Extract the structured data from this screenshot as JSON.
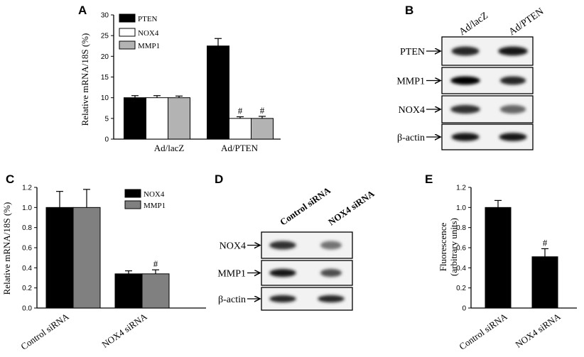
{
  "panels": {
    "A": {
      "letter": "A",
      "legend": [
        "PTEN",
        "NOX4",
        "MMP1"
      ],
      "ylabel": "Relative mRNA/18S (%)",
      "categories": [
        "Ad/lacZ",
        "Ad/PTEN"
      ],
      "annotation": "#"
    },
    "B": {
      "letter": "B",
      "lanes": [
        "Ad/lacZ",
        "Ad/PTEN"
      ],
      "rows": [
        "PTEN",
        "MMP1",
        "NOX4",
        "β-actin"
      ]
    },
    "C": {
      "letter": "C",
      "legend": [
        "NOX4",
        "MMP1"
      ],
      "ylabel": "Relative mRNA/18S (%)",
      "categories": [
        "Control siRNA",
        "NOX4 siRNA"
      ],
      "annotation": "#"
    },
    "D": {
      "letter": "D",
      "lanes": [
        "Control siRNA",
        "NOX4 siRNA"
      ],
      "rows": [
        "NOX4",
        "MMP1",
        "β-actin"
      ]
    },
    "E": {
      "letter": "E",
      "ylabel_line1": "Fluorescence",
      "ylabel_line2": "(arbitrary units)",
      "categories": [
        "Control siRNA",
        "NOX4 siRNA"
      ],
      "annotation": "#"
    }
  },
  "chart_data": [
    {
      "panel": "A",
      "type": "bar",
      "categories": [
        "Ad/lacZ",
        "Ad/PTEN"
      ],
      "series": [
        {
          "name": "PTEN",
          "values": [
            10.0,
            22.5
          ],
          "errors": [
            0.5,
            1.8
          ],
          "color": "#000000"
        },
        {
          "name": "NOX4",
          "values": [
            10.0,
            5.0
          ],
          "errors": [
            0.5,
            0.4
          ],
          "color": "#ffffff"
        },
        {
          "name": "MMP1",
          "values": [
            10.0,
            5.0
          ],
          "errors": [
            0.4,
            0.5
          ],
          "color": "#b3b3b3"
        }
      ],
      "ylabel": "Relative mRNA/18S (%)",
      "ylim": [
        0,
        30
      ],
      "yticks": [
        0,
        5,
        10,
        15,
        20,
        25,
        30
      ],
      "legend": "top-left",
      "grid": false
    },
    {
      "panel": "C",
      "type": "bar",
      "categories": [
        "Control siRNA",
        "NOX4 siRNA"
      ],
      "series": [
        {
          "name": "NOX4",
          "values": [
            1.0,
            0.34
          ],
          "errors": [
            0.16,
            0.03
          ],
          "color": "#000000"
        },
        {
          "name": "MMP1",
          "values": [
            1.0,
            0.34
          ],
          "errors": [
            0.18,
            0.04
          ],
          "color": "#808080"
        }
      ],
      "ylabel": "Relative mRNA/18S (%)",
      "ylim": [
        0,
        1.2
      ],
      "yticks": [
        0.0,
        0.2,
        0.4,
        0.6,
        0.8,
        1.0,
        1.2
      ],
      "legend": "top-right",
      "grid": false
    },
    {
      "panel": "E",
      "type": "bar",
      "categories": [
        "Control siRNA",
        "NOX4 siRNA"
      ],
      "series": [
        {
          "name": "",
          "values": [
            1.0,
            0.51
          ],
          "errors": [
            0.07,
            0.08
          ],
          "color": "#000000"
        }
      ],
      "ylabel": "Fluorescence (arbitrary units)",
      "ylim": [
        0,
        1.2
      ],
      "yticks": [
        0,
        0.2,
        0.4,
        0.6,
        0.8,
        1.0,
        1.2
      ],
      "grid": false
    }
  ],
  "blots": {
    "B": [
      {
        "row": "PTEN",
        "intensity": [
          0.85,
          0.9
        ],
        "width": [
          0.75,
          0.8
        ]
      },
      {
        "row": "MMP1",
        "intensity": [
          1.0,
          0.85
        ],
        "width": [
          0.8,
          0.7
        ]
      },
      {
        "row": "NOX4",
        "intensity": [
          0.8,
          0.6
        ],
        "width": [
          0.8,
          0.7
        ]
      },
      {
        "row": "β-actin",
        "intensity": [
          0.9,
          0.9
        ],
        "width": [
          0.75,
          0.75
        ]
      }
    ],
    "D": [
      {
        "row": "NOX4",
        "intensity": [
          0.8,
          0.55
        ],
        "width": [
          0.75,
          0.6
        ]
      },
      {
        "row": "MMP1",
        "intensity": [
          0.9,
          0.7
        ],
        "width": [
          0.75,
          0.6
        ]
      },
      {
        "row": "β-actin",
        "intensity": [
          0.85,
          0.85
        ],
        "width": [
          0.75,
          0.75
        ]
      }
    ]
  }
}
